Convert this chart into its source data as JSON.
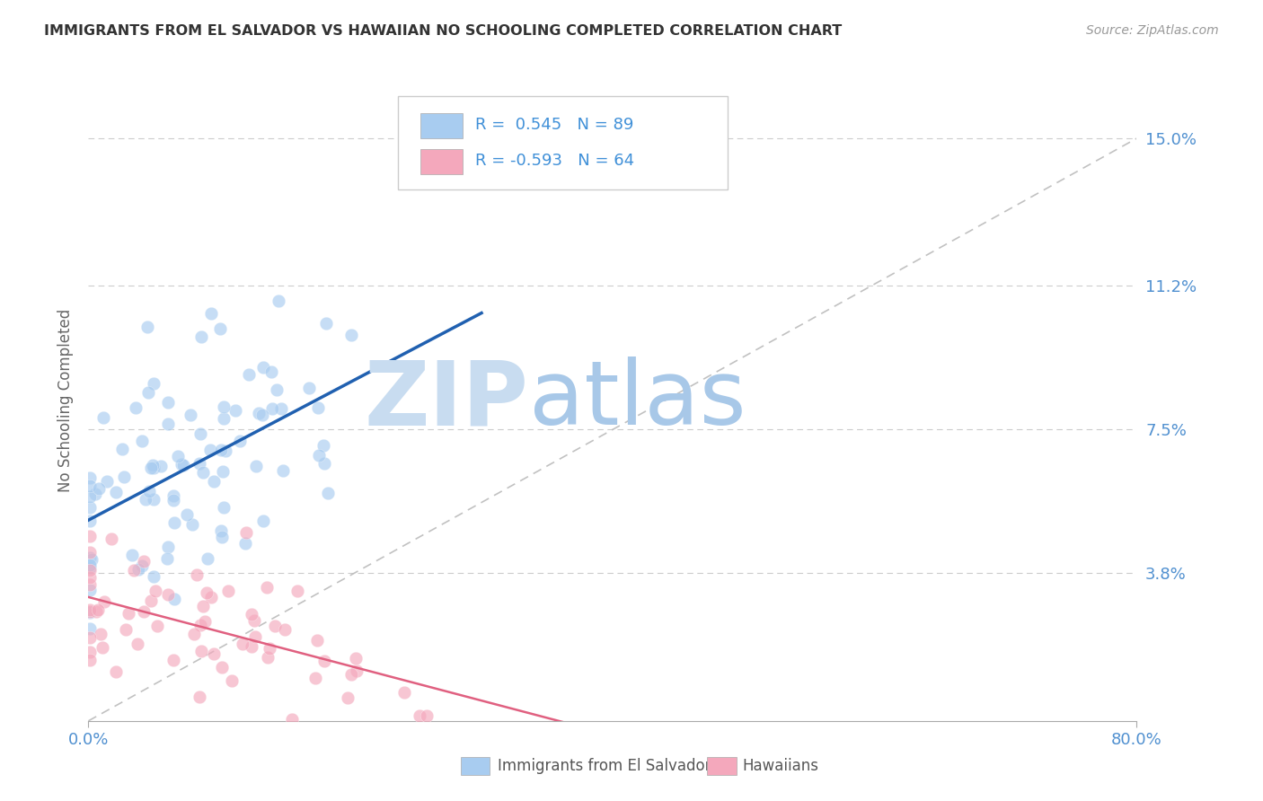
{
  "title": "IMMIGRANTS FROM EL SALVADOR VS HAWAIIAN NO SCHOOLING COMPLETED CORRELATION CHART",
  "source": "Source: ZipAtlas.com",
  "ylabel": "No Schooling Completed",
  "xlim": [
    0.0,
    0.8
  ],
  "ylim": [
    0.0,
    0.165
  ],
  "blue_R": 0.545,
  "blue_N": 89,
  "pink_R": -0.593,
  "pink_N": 64,
  "blue_color": "#A8CCF0",
  "pink_color": "#F4A8BC",
  "blue_line_color": "#2060B0",
  "pink_line_color": "#E06080",
  "grid_color": "#CCCCCC",
  "title_color": "#333333",
  "axis_tick_color": "#5090D0",
  "watermark_zip_color": "#C8DCF0",
  "watermark_atlas_color": "#A8C8E8",
  "legend_label_blue": "Immigrants from El Salvador",
  "legend_label_pink": "Hawaiians",
  "blue_R_color": "#4090D8",
  "pink_R_color": "#4090D8",
  "legend_text_color": "#4090D8"
}
